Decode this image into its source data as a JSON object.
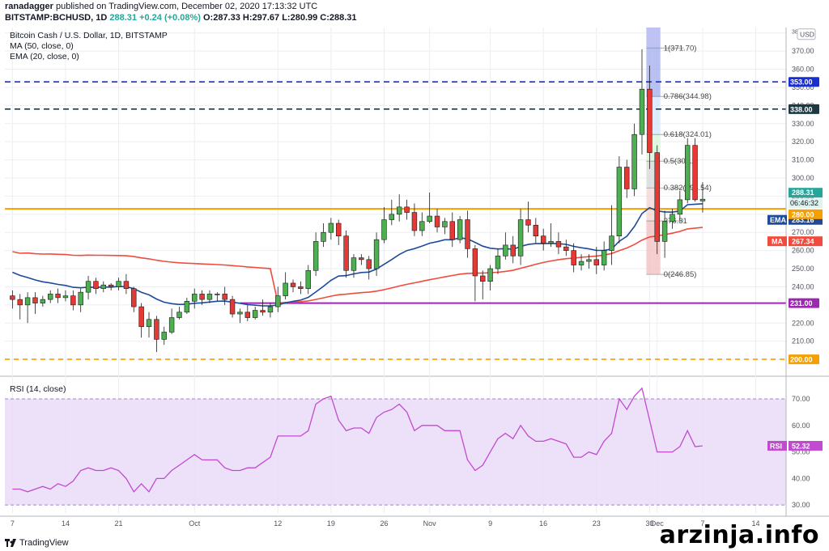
{
  "header": {
    "line1_user": "ranadagger",
    "line1_rest": "published on TradingView.com, December 02, 2020 17:13:32 UTC",
    "symbol": "BITSTAMP:BCHUSD, 1D",
    "price": "288.31",
    "change": "+0.24 (+0.08%)",
    "ohlc": "O:287.33 H:297.67 L:280.99 C:288.31"
  },
  "legend": {
    "title": "Bitcoin Cash / U.S. Dollar, 1D, BITSTAMP",
    "ma": "MA (50, close, 0)",
    "ema": "EMA (20, close, 0)"
  },
  "rsi_legend": "RSI (14, close)",
  "footer_brand": "TradingView",
  "watermark": "arzinja.info",
  "colors": {
    "up": "#26a69a",
    "down": "#ef5350",
    "ema": "#1e4a9c",
    "ma": "#f04b3c",
    "support_orange": "#f5a000",
    "support_purple": "#9c27b0",
    "resistance_blue": "#1a2fd0",
    "resistance_dark": "#1d3a44",
    "rsi": "#c24ad1"
  },
  "chart_data": {
    "type": "candlestick",
    "title": "Bitcoin Cash / U.S. Dollar, 1D, BITSTAMP",
    "currency": "USD",
    "ylim": [
      192,
      383
    ],
    "y_ticks": [
      200,
      210,
      220,
      230,
      240,
      250,
      260,
      270,
      280,
      290,
      300,
      310,
      320,
      330,
      340,
      350,
      360,
      370,
      380
    ],
    "x_tick_labels": [
      {
        "label": "7",
        "day": 0
      },
      {
        "label": "14",
        "day": 7
      },
      {
        "label": "21",
        "day": 14
      },
      {
        "label": "Oct",
        "day": 24
      },
      {
        "label": "12",
        "day": 35
      },
      {
        "label": "19",
        "day": 42
      },
      {
        "label": "26",
        "day": 49
      },
      {
        "label": "Nov",
        "day": 55
      },
      {
        "label": "9",
        "day": 63
      },
      {
        "label": "16",
        "day": 70
      },
      {
        "label": "23",
        "day": 77
      },
      {
        "label": "30",
        "day": 84
      },
      {
        "label": "Dec",
        "day": 85
      },
      {
        "label": "7",
        "day": 91
      },
      {
        "label": "14",
        "day": 98
      }
    ],
    "days_visible": [
      -1,
      102
    ],
    "candles": [
      [
        235,
        233,
        238,
        228
      ],
      [
        233,
        230,
        236,
        222
      ],
      [
        230,
        234,
        237,
        220
      ],
      [
        234,
        231,
        237,
        225
      ],
      [
        231,
        233,
        235,
        229
      ],
      [
        233,
        236,
        238,
        231
      ],
      [
        236,
        234,
        239,
        231
      ],
      [
        234,
        235,
        238,
        232
      ],
      [
        235,
        230,
        238,
        227
      ],
      [
        230,
        237,
        239,
        226
      ],
      [
        237,
        243,
        246,
        233
      ],
      [
        243,
        239,
        245,
        236
      ],
      [
        239,
        241,
        243,
        237
      ],
      [
        241,
        240,
        242,
        238
      ],
      [
        240,
        243,
        245,
        238
      ],
      [
        243,
        239,
        247,
        236
      ],
      [
        239,
        229,
        240,
        226
      ],
      [
        229,
        218,
        231,
        212
      ],
      [
        218,
        222,
        226,
        212
      ],
      [
        222,
        211,
        224,
        204
      ],
      [
        211,
        215,
        218,
        208
      ],
      [
        215,
        223,
        228,
        214
      ],
      [
        223,
        226,
        229,
        222
      ],
      [
        226,
        232,
        234,
        225
      ],
      [
        232,
        236,
        239,
        228
      ],
      [
        236,
        233,
        238,
        230
      ],
      [
        233,
        236,
        238,
        231
      ],
      [
        236,
        236,
        237,
        232
      ],
      [
        236,
        233,
        240,
        230
      ],
      [
        233,
        225,
        235,
        223
      ],
      [
        225,
        226,
        228,
        220
      ],
      [
        226,
        223,
        230,
        221
      ],
      [
        223,
        227,
        229,
        222
      ],
      [
        227,
        226,
        233,
        224
      ],
      [
        226,
        229,
        231,
        223
      ],
      [
        229,
        235,
        240,
        226
      ],
      [
        235,
        242,
        248,
        233
      ],
      [
        242,
        240,
        244,
        237
      ],
      [
        240,
        239,
        243,
        236
      ],
      [
        239,
        249,
        252,
        236
      ],
      [
        249,
        265,
        270,
        246
      ],
      [
        265,
        270,
        275,
        262
      ],
      [
        270,
        275,
        278,
        266
      ],
      [
        275,
        268,
        277,
        263
      ],
      [
        268,
        249,
        271,
        245
      ],
      [
        249,
        256,
        258,
        245
      ],
      [
        256,
        255,
        258,
        252
      ],
      [
        255,
        250,
        257,
        244
      ],
      [
        250,
        266,
        270,
        246
      ],
      [
        266,
        277,
        284,
        264
      ],
      [
        277,
        280,
        288,
        274
      ],
      [
        280,
        284,
        291,
        276
      ],
      [
        284,
        281,
        288,
        277
      ],
      [
        281,
        271,
        286,
        268
      ],
      [
        271,
        276,
        281,
        268
      ],
      [
        276,
        279,
        292,
        275
      ],
      [
        279,
        273,
        283,
        270
      ],
      [
        273,
        276,
        278,
        269
      ],
      [
        276,
        266,
        281,
        262
      ],
      [
        266,
        277,
        279,
        264
      ],
      [
        277,
        261,
        282,
        256
      ],
      [
        261,
        246,
        263,
        232
      ],
      [
        246,
        243,
        249,
        233
      ],
      [
        243,
        250,
        252,
        238
      ],
      [
        250,
        257,
        261,
        247
      ],
      [
        257,
        263,
        270,
        255
      ],
      [
        263,
        257,
        268,
        253
      ],
      [
        257,
        277,
        283,
        252
      ],
      [
        277,
        274,
        287,
        270
      ],
      [
        274,
        268,
        278,
        264
      ],
      [
        268,
        264,
        272,
        260
      ],
      [
        264,
        265,
        275,
        262
      ],
      [
        265,
        262,
        270,
        258
      ],
      [
        262,
        260,
        266,
        257
      ],
      [
        260,
        252,
        264,
        248
      ],
      [
        252,
        254,
        258,
        249
      ],
      [
        254,
        255,
        258,
        250
      ],
      [
        255,
        252,
        262,
        247
      ],
      [
        252,
        260,
        265,
        249
      ],
      [
        260,
        268,
        285,
        252
      ],
      [
        268,
        306,
        312,
        264
      ],
      [
        306,
        294,
        310,
        289
      ],
      [
        294,
        324,
        330,
        290
      ],
      [
        324,
        349,
        371,
        313
      ],
      [
        349,
        314,
        362,
        305
      ],
      [
        314,
        265,
        318,
        258
      ],
      [
        265,
        276,
        282,
        256
      ],
      [
        276,
        280,
        283,
        272
      ],
      [
        280,
        288,
        293,
        276
      ],
      [
        288,
        318,
        322,
        286
      ],
      [
        318,
        288,
        322,
        287
      ],
      [
        287.33,
        288.31,
        297.67,
        280.99
      ]
    ],
    "series": [
      {
        "name": "EMA (20, close, 0)",
        "last": 283.16
      },
      {
        "name": "MA (50, close, 0)",
        "last": 267.34
      }
    ],
    "horizontal_levels": [
      {
        "value": 353.0,
        "label": "353.00",
        "style": "dashed"
      },
      {
        "value": 338.0,
        "label": "338.00",
        "style": "dashed"
      },
      {
        "value": 283.0,
        "label": "",
        "style": "solid"
      },
      {
        "value": 231.0,
        "label": "231.00",
        "style": "solid"
      },
      {
        "value": 200.0,
        "label": "200.00",
        "style": "dashed"
      }
    ],
    "price_labels": [
      {
        "value": 288.31,
        "label": "288.31"
      },
      {
        "value": 283.16,
        "label": "283.16",
        "tag": "EMA",
        "time": "06:46:32"
      },
      {
        "value": 280.0,
        "label": "280.00"
      },
      {
        "value": 267.34,
        "label": "267.34",
        "tag": "MA"
      },
      {
        "value": 380.0,
        "label": "USD"
      }
    ],
    "fibonacci": [
      {
        "value": 371.7,
        "label": "1(371.70)"
      },
      {
        "value": 344.98,
        "label": "0.786(344.98)"
      },
      {
        "value": 324.01,
        "label": "0.618(324.01)"
      },
      {
        "value": 309.28,
        "label": "0.5(309.2"
      },
      {
        "value": 294.54,
        "label": "0.382(294.54)"
      },
      {
        "value": 276.31,
        "label": "276.31"
      },
      {
        "value": 246.85,
        "label": "0(246.85)"
      }
    ],
    "rsi": {
      "title": "RSI (14, close)",
      "ylim": [
        27,
        77
      ],
      "y_ticks": [
        30,
        40,
        50,
        60,
        70
      ],
      "bands": [
        30,
        70
      ],
      "last": 52.32,
      "values": [
        36,
        36,
        35,
        36,
        37,
        36,
        38,
        37,
        39,
        43,
        44,
        43,
        43,
        44,
        43,
        40,
        35,
        38,
        35,
        40,
        40,
        43,
        45,
        47,
        49,
        47,
        47,
        47,
        44,
        43,
        43,
        44,
        44,
        46,
        48,
        56,
        56,
        56,
        56,
        58,
        68,
        70,
        71,
        62,
        58,
        59,
        59,
        57,
        63,
        65,
        66,
        68,
        65,
        58,
        60,
        60,
        60,
        58,
        58,
        58,
        47,
        43,
        45,
        50,
        55,
        57,
        55,
        60,
        56,
        54,
        54,
        55,
        54,
        53,
        48,
        48,
        50,
        49,
        54,
        57,
        70,
        66,
        71,
        74,
        62,
        50,
        50,
        50,
        52,
        58,
        52,
        52.32
      ]
    }
  }
}
